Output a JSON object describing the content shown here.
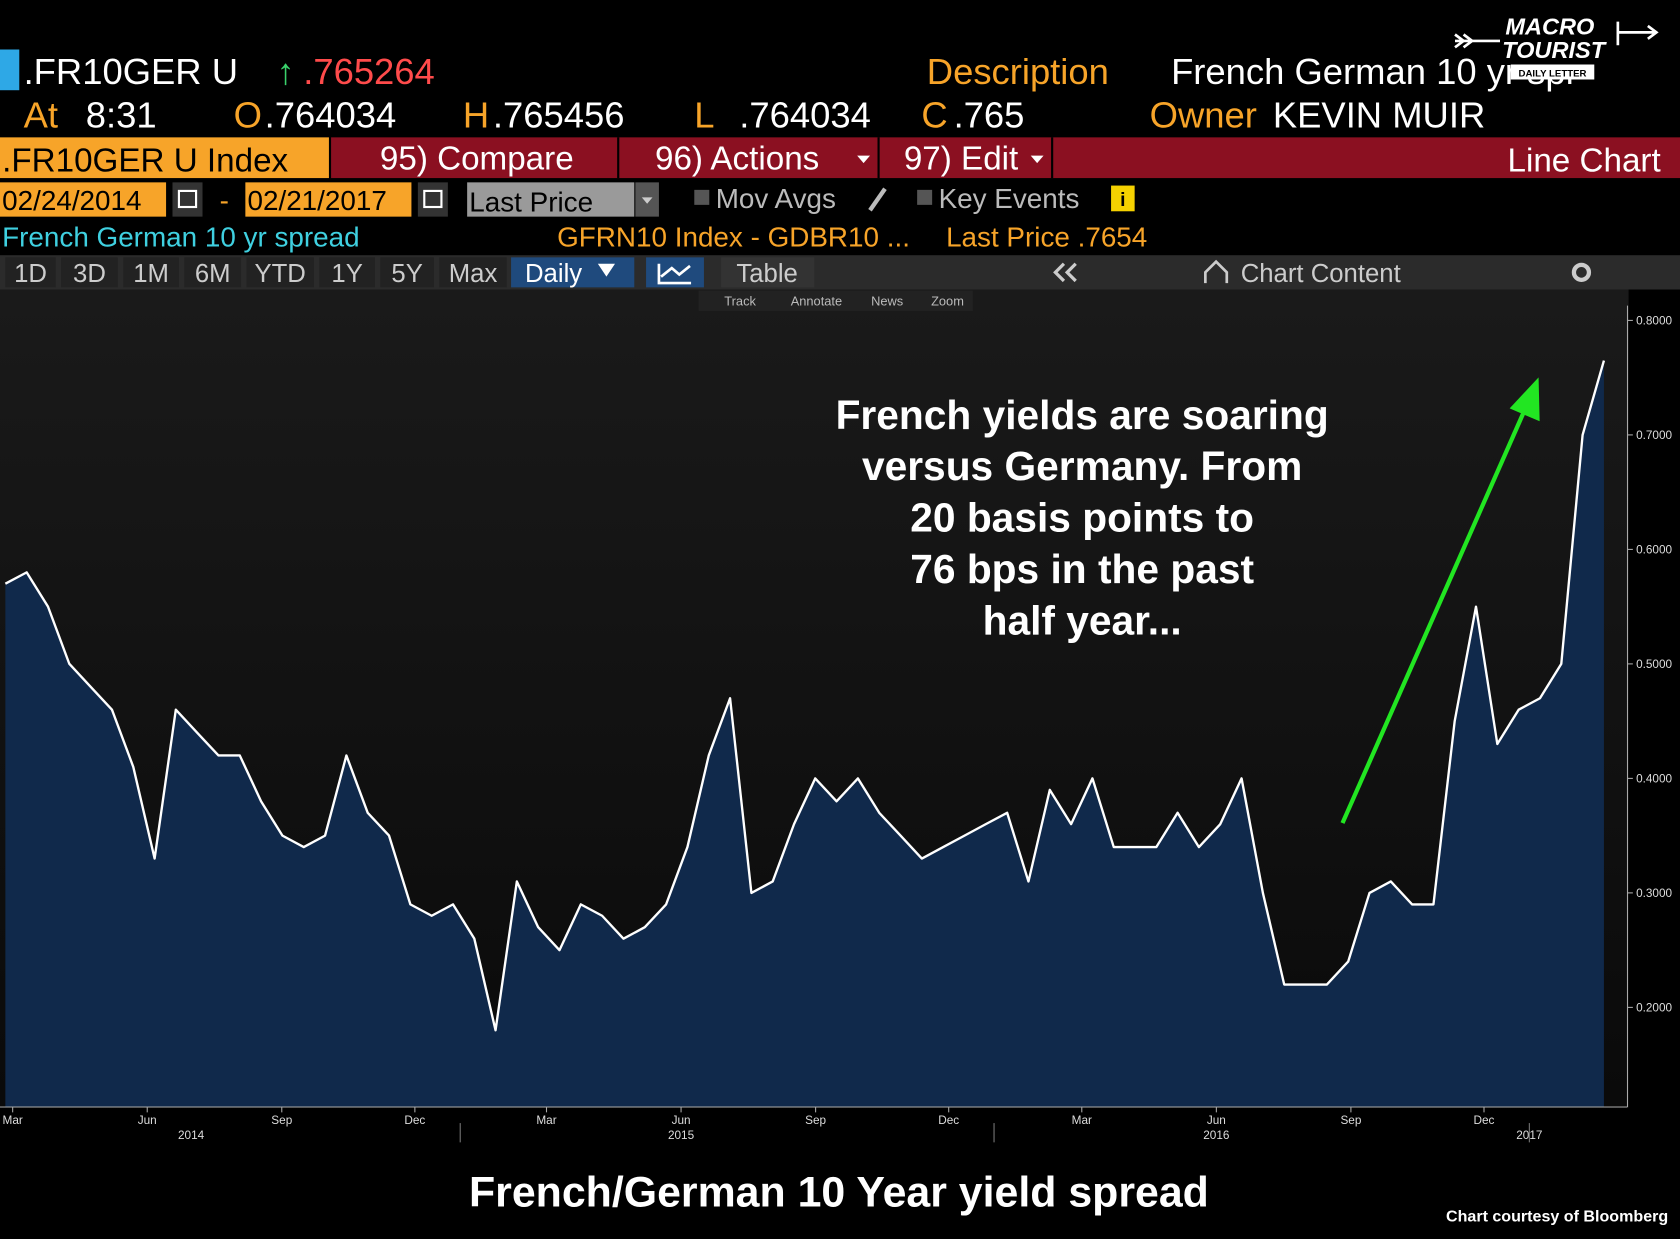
{
  "header": {
    "ticker": ".FR10GER U",
    "change_arrow": "↑",
    "last": ".765264",
    "desc_label": "Description",
    "desc": "French German 10 yr spr",
    "at_label": "At",
    "time": "8:31",
    "open_label": "O",
    "open": ".764034",
    "high_label": "H",
    "high": ".765456",
    "low_label": "L",
    "low": ".764034",
    "close_label": "C",
    "close": ".765",
    "owner_label": "Owner",
    "owner": "KEVIN MUIR"
  },
  "toolbar": {
    "index": ".FR10GER U Index",
    "compare": "95) Compare",
    "actions": "96) Actions",
    "edit": "97) Edit",
    "chart_type": "Line Chart"
  },
  "range": {
    "start": "02/24/2014",
    "separator": "-",
    "end": "02/21/2017",
    "field": "Last Price",
    "mov_avgs": "Mov Avgs",
    "key_events": "Key Events",
    "info": "i"
  },
  "legend": {
    "security": "French German 10 yr spread",
    "last_price": "Last Price .7654"
  },
  "periods": [
    "1D",
    "3D",
    "1M",
    "6M",
    "YTD",
    "1Y",
    "5Y",
    "Max"
  ],
  "view": {
    "frequency": "Daily",
    "table": "Table",
    "content": "Chart Content"
  },
  "tools": [
    "Track",
    "Annotate",
    "News",
    "Zoom"
  ],
  "logo": {
    "line1": "MACRO",
    "line2": "TOURIST",
    "line3": "DAILY LETTER"
  },
  "caption": "French/German 10 Year yield spread",
  "credit": "Chart courtesy of Bloomberg",
  "chart_data": {
    "type": "line",
    "annotation": [
      "French yields are soaring",
      "versus Germany.  From",
      "20 basis points to",
      "76 bps in the past",
      "half year..."
    ],
    "series": [
      {
        "name": "GFRN10 Index - GDBR10 ...",
        "color": "#ffffff",
        "fill": "#10294b",
        "values": [
          0.57,
          0.58,
          0.55,
          0.5,
          0.48,
          0.46,
          0.41,
          0.33,
          0.46,
          0.44,
          0.42,
          0.42,
          0.38,
          0.35,
          0.34,
          0.35,
          0.42,
          0.37,
          0.35,
          0.29,
          0.28,
          0.29,
          0.26,
          0.18,
          0.31,
          0.27,
          0.25,
          0.29,
          0.28,
          0.26,
          0.27,
          0.29,
          0.34,
          0.42,
          0.47,
          0.3,
          0.31,
          0.36,
          0.4,
          0.38,
          0.4,
          0.37,
          0.35,
          0.33,
          0.34,
          0.35,
          0.36,
          0.37,
          0.31,
          0.39,
          0.36,
          0.4,
          0.34,
          0.34,
          0.34,
          0.37,
          0.34,
          0.36,
          0.4,
          0.3,
          0.22,
          0.22,
          0.22,
          0.24,
          0.3,
          0.31,
          0.29,
          0.29,
          0.45,
          0.55,
          0.43,
          0.46,
          0.47,
          0.5,
          0.7,
          0.765
        ]
      }
    ],
    "ylim": [
      0.113,
      0.827
    ],
    "yticks": [
      {
        "value": 0.2,
        "label": "0.2000"
      },
      {
        "value": 0.3,
        "label": "0.3000"
      },
      {
        "value": 0.4,
        "label": "0.4000"
      },
      {
        "value": 0.5,
        "label": "0.5000"
      },
      {
        "value": 0.6,
        "label": "0.6000"
      },
      {
        "value": 0.7,
        "label": "0.7000"
      },
      {
        "value": 0.8,
        "label": "0.8000"
      }
    ],
    "xticks": [
      {
        "value": "2014-03",
        "label": "Mar"
      },
      {
        "value": "2014-06",
        "label": "Jun"
      },
      {
        "value": "2014-09",
        "label": "Sep"
      },
      {
        "value": "2014-12",
        "label": "Dec"
      },
      {
        "value": "2015-03",
        "label": "Mar"
      },
      {
        "value": "2015-06",
        "label": "Jun"
      },
      {
        "value": "2015-09",
        "label": "Sep"
      },
      {
        "value": "2015-12",
        "label": "Dec"
      },
      {
        "value": "2016-03",
        "label": "Mar"
      },
      {
        "value": "2016-06",
        "label": "Jun"
      },
      {
        "value": "2016-09",
        "label": "Sep"
      },
      {
        "value": "2016-12",
        "label": "Dec"
      }
    ],
    "year_ticks": [
      {
        "value": "2014-07",
        "label": "2014"
      },
      {
        "value": "2015-06",
        "label": "2015"
      },
      {
        "value": "2016-06",
        "label": "2016"
      },
      {
        "value": "2017-01",
        "label": "2017"
      }
    ]
  }
}
